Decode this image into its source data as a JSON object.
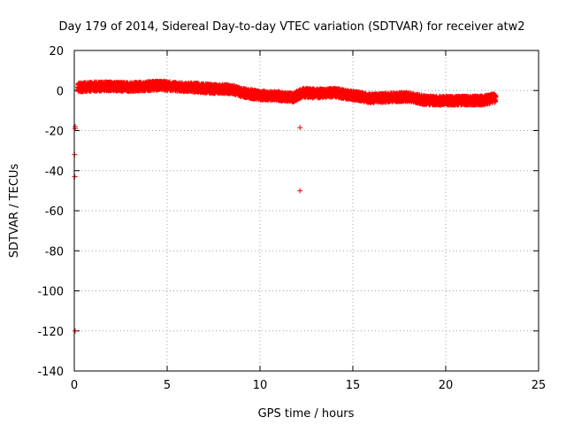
{
  "chart_data": {
    "type": "scatter",
    "title": "Day 179 of 2014, Sidereal Day-to-day VTEC variation (SDTVAR) for receiver atw2",
    "xlabel": "GPS time / hours",
    "ylabel": "SDTVAR / TECUs",
    "xlim": [
      0,
      25
    ],
    "ylim": [
      -140,
      20
    ],
    "xticks": [
      0,
      5,
      10,
      15,
      20,
      25
    ],
    "yticks": [
      20,
      0,
      -20,
      -40,
      -60,
      -80,
      -100,
      -120,
      -140
    ],
    "grid": true,
    "marker": "+",
    "color": "#ff0000",
    "band": [
      [
        0.2,
        1.5
      ],
      [
        1.0,
        2.0
      ],
      [
        2.0,
        2.2
      ],
      [
        3.0,
        1.8
      ],
      [
        4.0,
        2.2
      ],
      [
        4.7,
        2.6
      ],
      [
        5.5,
        1.8
      ],
      [
        6.5,
        1.5
      ],
      [
        7.5,
        0.8
      ],
      [
        8.5,
        0.6
      ],
      [
        9.0,
        -1.0
      ],
      [
        10.0,
        -2.5
      ],
      [
        11.0,
        -2.8
      ],
      [
        11.8,
        -3.5
      ],
      [
        12.3,
        -1.0
      ],
      [
        13.0,
        -1.5
      ],
      [
        14.0,
        -1.0
      ],
      [
        15.0,
        -2.5
      ],
      [
        16.0,
        -4.0
      ],
      [
        17.0,
        -3.5
      ],
      [
        18.0,
        -3.2
      ],
      [
        19.0,
        -5.0
      ],
      [
        20.0,
        -5.0
      ],
      [
        21.0,
        -5.0
      ],
      [
        22.0,
        -5.0
      ],
      [
        22.7,
        -3.5
      ]
    ],
    "band_half_width": 2.2,
    "outliers": [
      [
        0.05,
        -18
      ],
      [
        0.05,
        -19
      ],
      [
        0.02,
        -32
      ],
      [
        0.03,
        -43
      ],
      [
        0.05,
        -120
      ],
      [
        12.15,
        -18.5
      ],
      [
        12.15,
        -50
      ]
    ]
  }
}
